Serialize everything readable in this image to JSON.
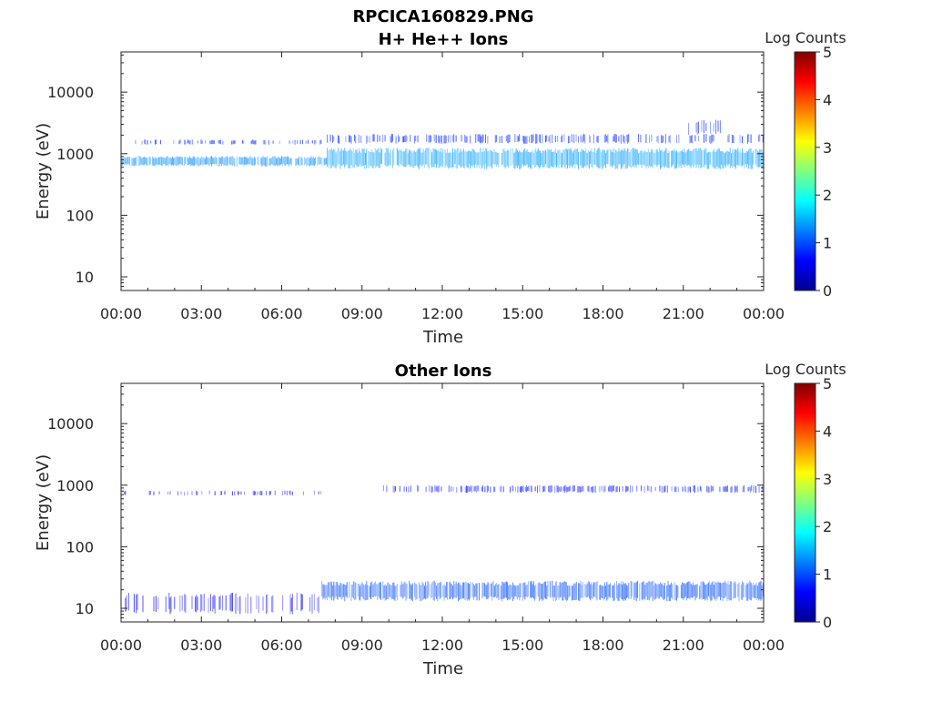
{
  "figure": {
    "title_line1": "RPCICA160829.PNG",
    "title_line2": "H+ He++ Ions"
  },
  "colors": {
    "axis": "#262626",
    "background": "#ffffff",
    "colormap": [
      "#00008f",
      "#0000ff",
      "#0080ff",
      "#00ffff",
      "#80ff80",
      "#ffff00",
      "#ff8000",
      "#ff0000",
      "#800000"
    ]
  },
  "chart_data": [
    {
      "type": "heatmap",
      "title": "",
      "xlabel": "Time",
      "ylabel": "Energy (eV)",
      "y_scale": "log",
      "ylim": [
        6,
        45000
      ],
      "x_ticks": [
        "00:00",
        "03:00",
        "06:00",
        "09:00",
        "12:00",
        "15:00",
        "18:00",
        "21:00",
        "00:00"
      ],
      "y_ticks": [
        {
          "value": 10,
          "label": "10"
        },
        {
          "value": 100,
          "label": "100"
        },
        {
          "value": 1000,
          "label": "1000"
        },
        {
          "value": 10000,
          "label": "10000"
        }
      ],
      "colorbar": {
        "label": "Log Counts",
        "range": [
          0,
          5
        ],
        "ticks": [
          "0",
          "1",
          "2",
          "3",
          "4",
          "5"
        ]
      },
      "bands": [
        {
          "start_hour": 0.0,
          "end_hour": 7.7,
          "e_low": 620,
          "e_high": 920,
          "log_counts": 1.3,
          "density": 0.9
        },
        {
          "start_hour": 7.7,
          "end_hour": 24.0,
          "e_low": 560,
          "e_high": 1250,
          "log_counts": 1.4,
          "density": 0.95
        },
        {
          "start_hour": 0.5,
          "end_hour": 7.5,
          "e_low": 1400,
          "e_high": 1700,
          "log_counts": 0.8,
          "density": 0.35
        },
        {
          "start_hour": 7.7,
          "end_hour": 24.0,
          "e_low": 1450,
          "e_high": 2100,
          "log_counts": 0.8,
          "density": 0.45
        },
        {
          "start_hour": 21.2,
          "end_hour": 22.4,
          "e_low": 2000,
          "e_high": 3600,
          "log_counts": 0.8,
          "density": 0.4
        }
      ]
    },
    {
      "type": "heatmap",
      "title": "Other Ions",
      "xlabel": "Time",
      "ylabel": "Energy (eV)",
      "y_scale": "log",
      "ylim": [
        6,
        45000
      ],
      "x_ticks": [
        "00:00",
        "03:00",
        "06:00",
        "09:00",
        "12:00",
        "15:00",
        "18:00",
        "21:00",
        "00:00"
      ],
      "y_ticks": [
        {
          "value": 10,
          "label": "10"
        },
        {
          "value": 100,
          "label": "100"
        },
        {
          "value": 1000,
          "label": "1000"
        },
        {
          "value": 10000,
          "label": "10000"
        }
      ],
      "colorbar": {
        "label": "Log Counts",
        "range": [
          0,
          5
        ],
        "ticks": [
          "0",
          "1",
          "2",
          "3",
          "4",
          "5"
        ]
      },
      "bands": [
        {
          "start_hour": 0.0,
          "end_hour": 7.5,
          "e_low": 680,
          "e_high": 820,
          "log_counts": 0.6,
          "density": 0.25
        },
        {
          "start_hour": 9.8,
          "end_hour": 24.0,
          "e_low": 750,
          "e_high": 1000,
          "log_counts": 0.7,
          "density": 0.5
        },
        {
          "start_hour": 0.0,
          "end_hour": 7.5,
          "e_low": 8,
          "e_high": 18,
          "log_counts": 0.6,
          "density": 0.35
        },
        {
          "start_hour": 7.5,
          "end_hour": 24.0,
          "e_low": 13,
          "e_high": 28,
          "log_counts": 1.0,
          "density": 0.9
        }
      ]
    }
  ]
}
